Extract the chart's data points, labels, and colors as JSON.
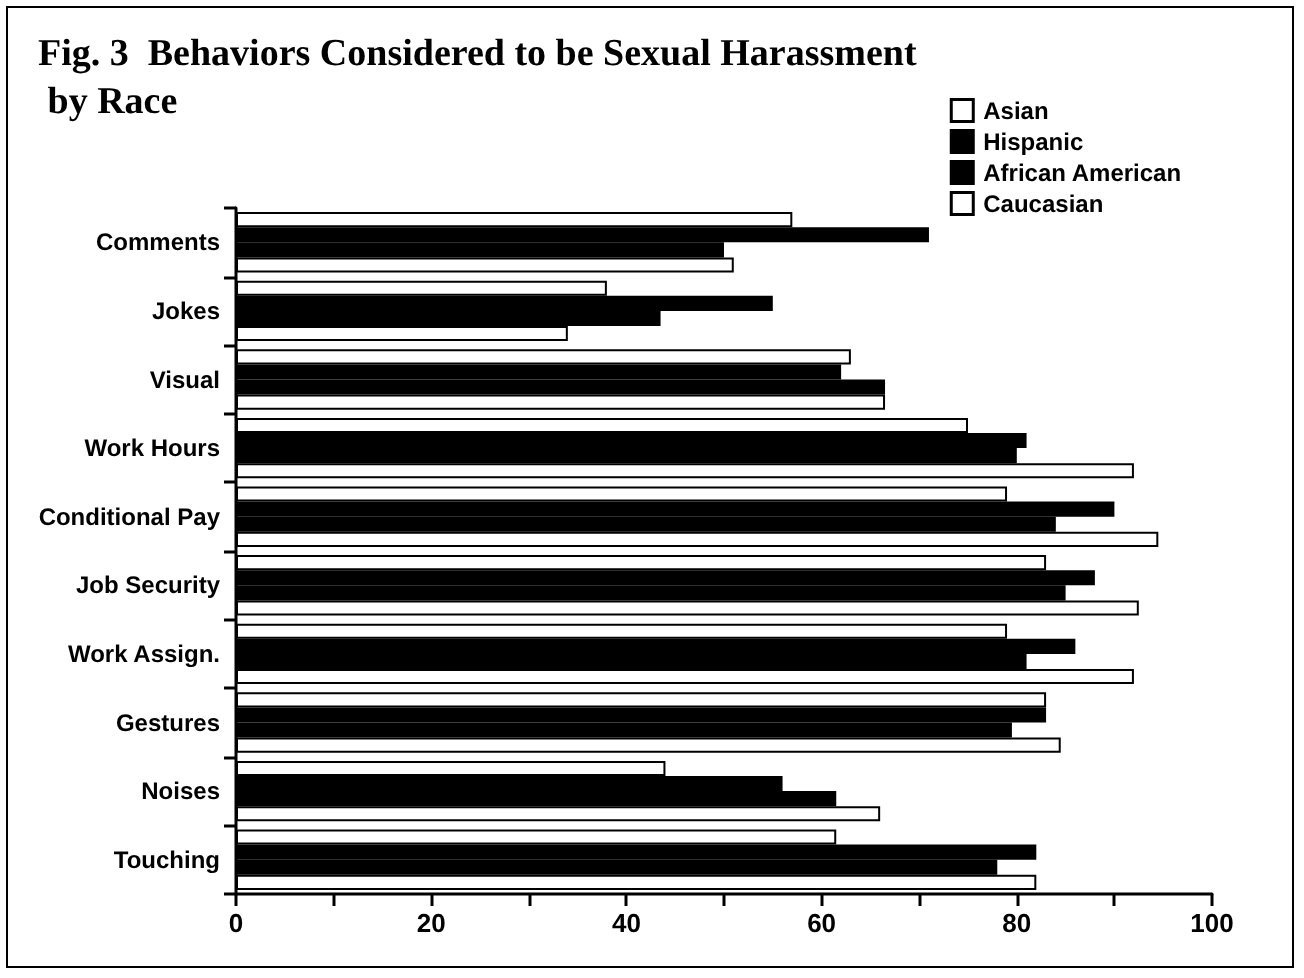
{
  "chart_data": {
    "type": "bar",
    "orientation": "horizontal",
    "title": "Fig. 3  Behaviors Considered to be Sexual Harassment by Race",
    "categories": [
      "Comments",
      "Jokes",
      "Visual",
      "Work Hours",
      "Conditional Pay",
      "Job Security",
      "Work Assign.",
      "Gestures",
      "Noises",
      "Touching"
    ],
    "series": [
      {
        "name": "Asian",
        "color": "#ffffff",
        "values": [
          57,
          38,
          63,
          75,
          79,
          83,
          79,
          83,
          44,
          61.5
        ]
      },
      {
        "name": "Hispanic",
        "color": "#000000",
        "values": [
          71,
          55,
          62,
          81,
          90,
          88,
          86,
          83,
          56,
          82
        ]
      },
      {
        "name": "African American",
        "color": "#000000",
        "values": [
          50,
          43.5,
          66.5,
          80,
          84,
          85,
          81,
          79.5,
          61.5,
          78
        ]
      },
      {
        "name": "Caucasian",
        "color": "#ffffff",
        "values": [
          51,
          34,
          66.5,
          92,
          94.5,
          92.5,
          92,
          84.5,
          66,
          82
        ]
      }
    ],
    "xlim": [
      0,
      100
    ],
    "xticks": [
      0,
      {
        "value": 10,
        "label": null
      },
      20,
      {
        "value": 30,
        "label": null
      },
      40,
      {
        "value": 50,
        "label": null
      },
      60,
      {
        "value": 70,
        "label": null
      },
      80,
      {
        "value": 90,
        "label": null
      },
      100
    ],
    "legend": "top right",
    "grid": false
  }
}
